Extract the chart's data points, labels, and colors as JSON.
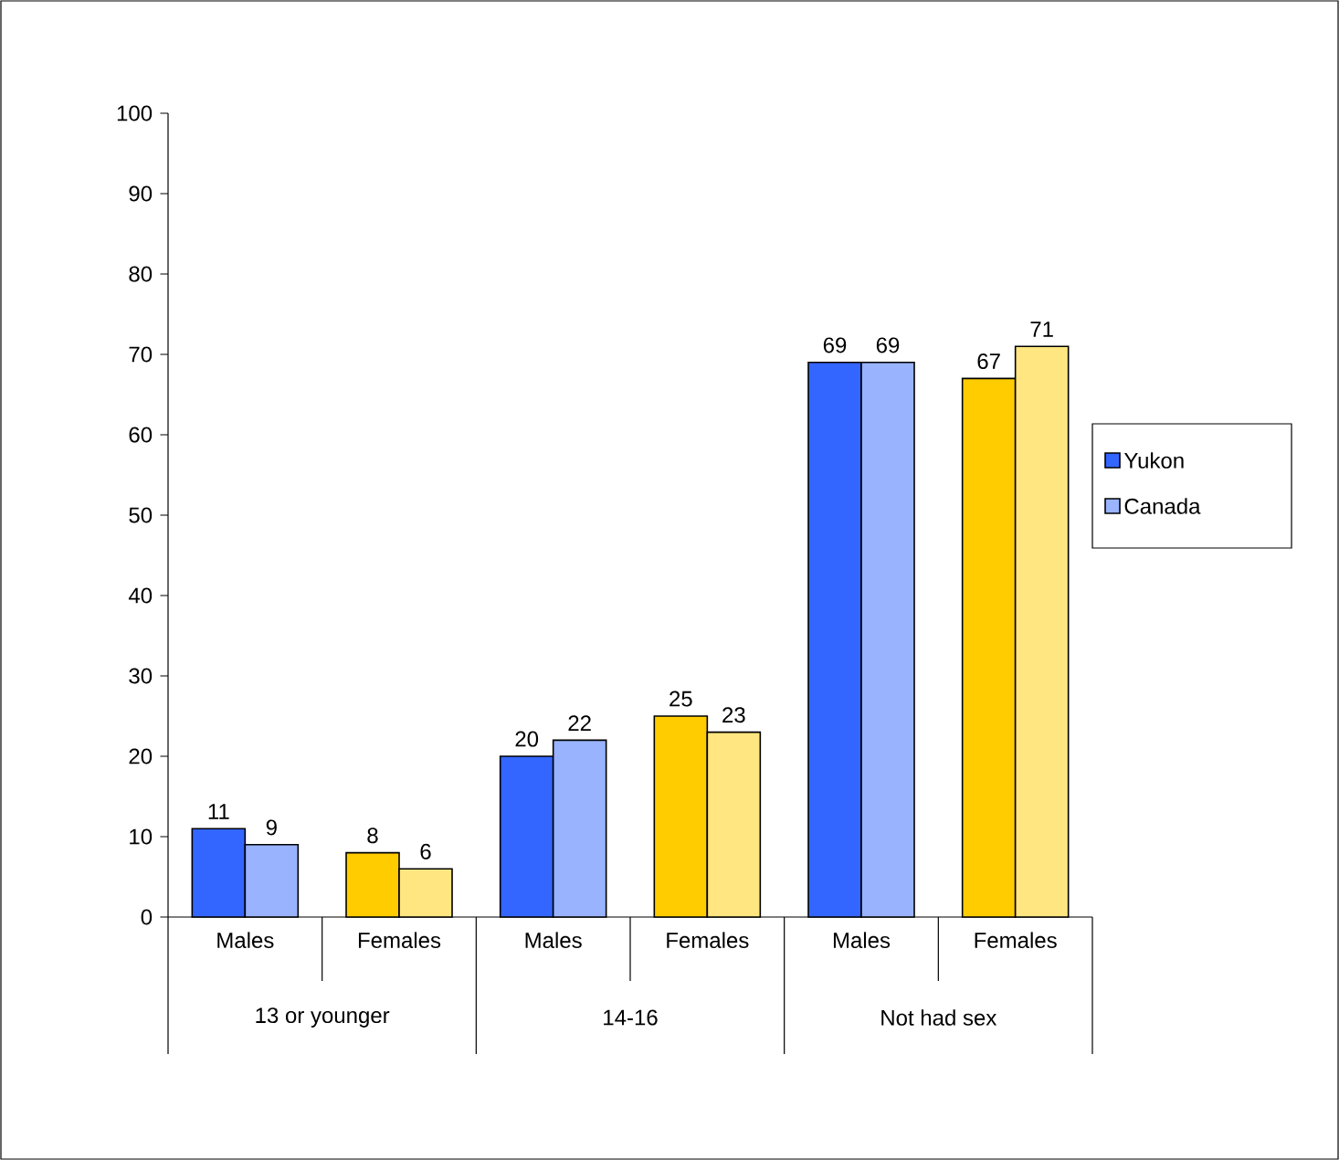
{
  "chart_data": {
    "type": "bar",
    "categories": [
      "Males",
      "Females",
      "Males",
      "Females",
      "Males",
      "Females"
    ],
    "series": [
      {
        "name": "Yukon",
        "colors": [
          "#3366ff",
          "#ffcc00",
          "#3366ff",
          "#ffcc00",
          "#3366ff",
          "#ffcc00"
        ],
        "values": [
          11,
          8,
          20,
          25,
          69,
          67
        ]
      },
      {
        "name": "Canada",
        "colors": [
          "#99b3ff",
          "#ffe680",
          "#99b3ff",
          "#ffe680",
          "#99b3ff",
          "#ffe680"
        ],
        "values": [
          9,
          6,
          22,
          23,
          69,
          71
        ]
      }
    ],
    "annotations": [
      "13 or younger",
      "14-16",
      "Not had sex"
    ],
    "ylim": [
      0,
      100
    ],
    "yticks": [
      0,
      10,
      20,
      30,
      40,
      50,
      60,
      70,
      80,
      90,
      100
    ],
    "data_labels": true,
    "legend": "right",
    "grid": false
  }
}
